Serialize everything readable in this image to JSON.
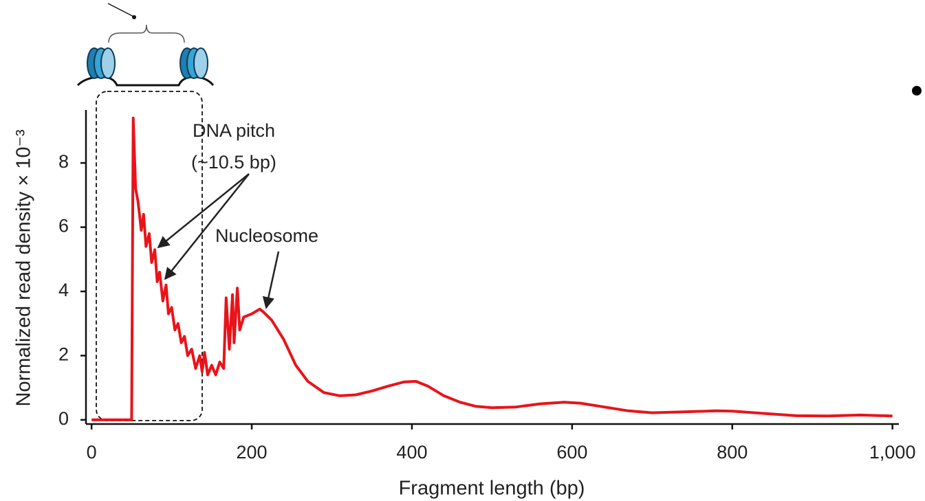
{
  "chart_data": {
    "type": "line",
    "xlabel": "Fragment length (bp)",
    "ylabel": "Normalized read density × 10⁻³",
    "annotations": [
      "DNA pitch",
      "(~10.5 bp)",
      "Nucleosome"
    ],
    "color": "#e8141a",
    "x": [
      0,
      50,
      52,
      55,
      58,
      62,
      65,
      68,
      72,
      75,
      79,
      82,
      85,
      89,
      93,
      96,
      100,
      104,
      108,
      112,
      116,
      120,
      125,
      130,
      135,
      138,
      141,
      145,
      150,
      155,
      160,
      165,
      168,
      172,
      176,
      178,
      182,
      185,
      190,
      200,
      210,
      215,
      225,
      240,
      255,
      270,
      290,
      310,
      330,
      350,
      370,
      390,
      405,
      420,
      440,
      460,
      480,
      500,
      530,
      560,
      590,
      610,
      640,
      670,
      700,
      740,
      780,
      800,
      840,
      880,
      920,
      960,
      1000
    ],
    "values": [
      0,
      0,
      9.4,
      7.2,
      6.8,
      5.9,
      6.4,
      5.4,
      5.8,
      4.9,
      5.3,
      4.3,
      4.6,
      3.7,
      4.2,
      3.3,
      3.5,
      2.8,
      3.0,
      2.4,
      2.6,
      2.0,
      2.2,
      1.6,
      2.0,
      1.5,
      2.1,
      1.4,
      1.7,
      1.4,
      1.8,
      1.6,
      3.8,
      2.2,
      3.9,
      2.4,
      4.1,
      2.8,
      3.2,
      3.3,
      3.45,
      3.35,
      3.1,
      2.5,
      1.7,
      1.2,
      0.85,
      0.75,
      0.78,
      0.9,
      1.05,
      1.18,
      1.2,
      1.05,
      0.75,
      0.55,
      0.42,
      0.38,
      0.4,
      0.5,
      0.55,
      0.52,
      0.4,
      0.28,
      0.22,
      0.25,
      0.28,
      0.27,
      0.2,
      0.13,
      0.12,
      0.15,
      0.12
    ],
    "xlim": [
      -7,
      1008
    ],
    "ylim": [
      -0.13,
      9.65
    ],
    "xticks": [
      0,
      200,
      400,
      600,
      800,
      {
        "value": 1000,
        "label": "1,000"
      }
    ],
    "yticks": [
      0,
      2,
      4,
      6,
      8
    ]
  }
}
